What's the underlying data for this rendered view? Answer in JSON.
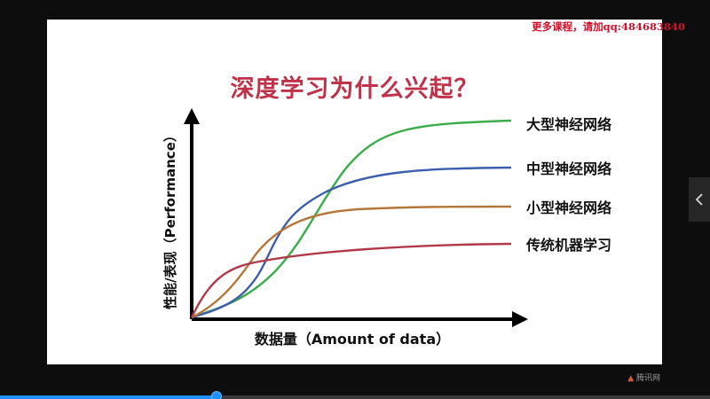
{
  "watermark": "更多课程，请加qq:484683840",
  "slide": {
    "title": "深度学习为什么兴起？"
  },
  "player": {
    "progress": 0.305,
    "accent": "#1e8fff",
    "side_tab_icon": "chevron-left-icon",
    "logo_icon": "flame-icon",
    "logo_text": "腾讯网"
  },
  "chart_data": {
    "type": "line",
    "xlabel": "数据量（Amount of data）",
    "ylabel": "性能/表现（Performance）",
    "axis_arrows": true,
    "grid": false,
    "legend": "right-inline",
    "series": [
      {
        "name": "大型神经网络",
        "color": "#3aad4a"
      },
      {
        "name": "中型神经网络",
        "color": "#3c5eab"
      },
      {
        "name": "小型神经网络",
        "color": "#b5763a"
      },
      {
        "name": "传统机器学习",
        "color": "#b13a4a"
      }
    ]
  }
}
